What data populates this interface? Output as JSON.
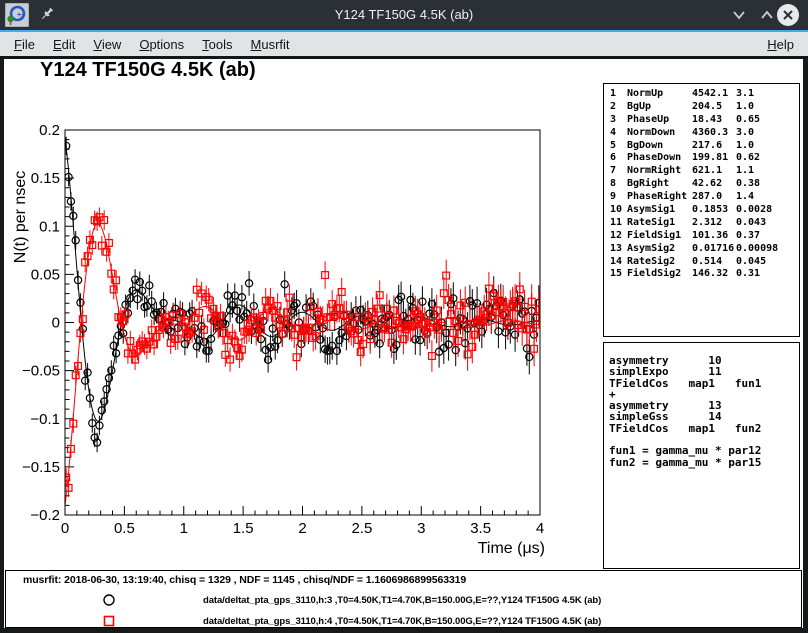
{
  "window": {
    "title": "Y124 TF150G 4.5K (ab)"
  },
  "menu": {
    "items": [
      {
        "label": "File"
      },
      {
        "label": "Edit"
      },
      {
        "label": "View"
      },
      {
        "label": "Options"
      },
      {
        "label": "Tools"
      },
      {
        "label": "Musrfit"
      }
    ],
    "help": {
      "label": "Help"
    }
  },
  "plot": {
    "title": "Y124 TF150G 4.5K (ab)"
  },
  "chart_data": {
    "type": "scatter",
    "title": "Y124 TF150G 4.5K (ab)",
    "xlabel": "Time (μs)",
    "ylabel": "N(t) per nsec",
    "xlim": [
      0,
      4
    ],
    "ylim": [
      -0.2,
      0.2
    ],
    "x_major_ticks": {
      "values": [
        0,
        0.5,
        1,
        1.5,
        2,
        2.5,
        3,
        3.5,
        4
      ],
      "labels": [
        "0",
        "0.5",
        "1",
        "1.5",
        "2",
        "2.5",
        "3",
        "3.5",
        "4"
      ]
    },
    "y_major_ticks": {
      "values": [
        0.2,
        0.15,
        0.1,
        0.05,
        0,
        -0.05,
        -0.1,
        -0.15,
        -0.2
      ],
      "labels": [
        "0.2",
        "0.15",
        "0.1",
        "0.05",
        "0",
        "−0.05",
        "−0.1",
        "−0.15",
        "−0.2"
      ]
    },
    "x_minor_step": 0.1,
    "y_minor_step": 0.01,
    "grid": false,
    "series": [
      {
        "name": "data/deltat_pta_gps_3110,h:3",
        "marker": "circle",
        "color": "#000000",
        "seed": 101,
        "n_points": 200,
        "t_start": 0.01,
        "t_step": 0.02,
        "err_base": 0.0095,
        "err_slope": 0.0022,
        "phase_deg": 18.43,
        "components": [
          {
            "asym": 0.1853,
            "relax_type": "exp",
            "rate": 2.312,
            "freq_mhz": 1.3738
          },
          {
            "asym": 0.01716,
            "relax_type": "gauss",
            "rate": 0.514,
            "freq_mhz": 1.9832
          }
        ]
      },
      {
        "name": "data/deltat_pta_gps_3110,h:4",
        "marker": "square",
        "color": "#ff0000",
        "seed": 202,
        "n_points": 200,
        "t_start": 0.01,
        "t_step": 0.02,
        "err_base": 0.0095,
        "err_slope": 0.0022,
        "phase_deg": 199.81,
        "components": [
          {
            "asym": 0.1853,
            "relax_type": "exp",
            "rate": 2.312,
            "freq_mhz": 1.3738
          },
          {
            "asym": 0.01716,
            "relax_type": "gauss",
            "rate": 0.514,
            "freq_mhz": 1.9832
          }
        ]
      }
    ],
    "fit_line": true
  },
  "parameters": {
    "rows": [
      {
        "no": "1",
        "name": "NormUp",
        "value": "4542.1",
        "error": "3.1"
      },
      {
        "no": "2",
        "name": "BgUp",
        "value": "204.5",
        "error": "1.0"
      },
      {
        "no": "3",
        "name": "PhaseUp",
        "value": "18.43",
        "error": "0.65"
      },
      {
        "no": "4",
        "name": "NormDown",
        "value": "4360.3",
        "error": "3.0"
      },
      {
        "no": "5",
        "name": "BgDown",
        "value": "217.6",
        "error": "1.0"
      },
      {
        "no": "6",
        "name": "PhaseDown",
        "value": "199.81",
        "error": "0.62"
      },
      {
        "no": "7",
        "name": "NormRight",
        "value": "621.1",
        "error": "1.1"
      },
      {
        "no": "8",
        "name": "BgRight",
        "value": "42.62",
        "error": "0.38"
      },
      {
        "no": "9",
        "name": "PhaseRight",
        "value": "287.0",
        "error": "1.4"
      },
      {
        "no": "10",
        "name": "AsymSig1",
        "value": "0.1853",
        "error": "0.0028"
      },
      {
        "no": "11",
        "name": "RateSig1",
        "value": "2.312",
        "error": "0.043"
      },
      {
        "no": "12",
        "name": "FieldSig1",
        "value": "101.36",
        "error": "0.37"
      },
      {
        "no": "13",
        "name": "AsymSig2",
        "value": "0.01716",
        "error": "0.00098"
      },
      {
        "no": "14",
        "name": "RateSig2",
        "value": "0.514",
        "error": "0.045"
      },
      {
        "no": "15",
        "name": "FieldSig2",
        "value": "146.32",
        "error": "0.31"
      }
    ]
  },
  "theory": {
    "lines": [
      "asymmetry      10",
      "simplExpo      11",
      "TFieldCos   map1   fun1",
      "+",
      "asymmetry      13",
      "simpleGss      14",
      "TFieldCos   map1   fun2",
      "",
      "fun1 = gamma_mu * par12",
      "fun2 = gamma_mu * par15"
    ]
  },
  "footer": {
    "status": "musrfit: 2018-06-30, 13:19:40, chisq = 1329 , NDF = 1145 , chisq/NDF = 1.1606986899563319",
    "entries": [
      {
        "marker": "circle",
        "color": "#000000",
        "label": "data/deltat_pta_gps_3110,h:3 ,T0=4.50K,T1=4.70K,B=150.00G,E=??,Y124 TF150G 4.5K (ab)"
      },
      {
        "marker": "square",
        "color": "#ff0000",
        "label": "data/deltat_pta_gps_3110,h:4 ,T0=4.50K,T1=4.70K,B=150.00G,E=??,Y124 TF150G 4.5K (ab)"
      }
    ]
  },
  "colors": {
    "accent": "#3daee9",
    "titlebar": "#2b3036",
    "series1": "#000000",
    "series2": "#ff0000"
  }
}
